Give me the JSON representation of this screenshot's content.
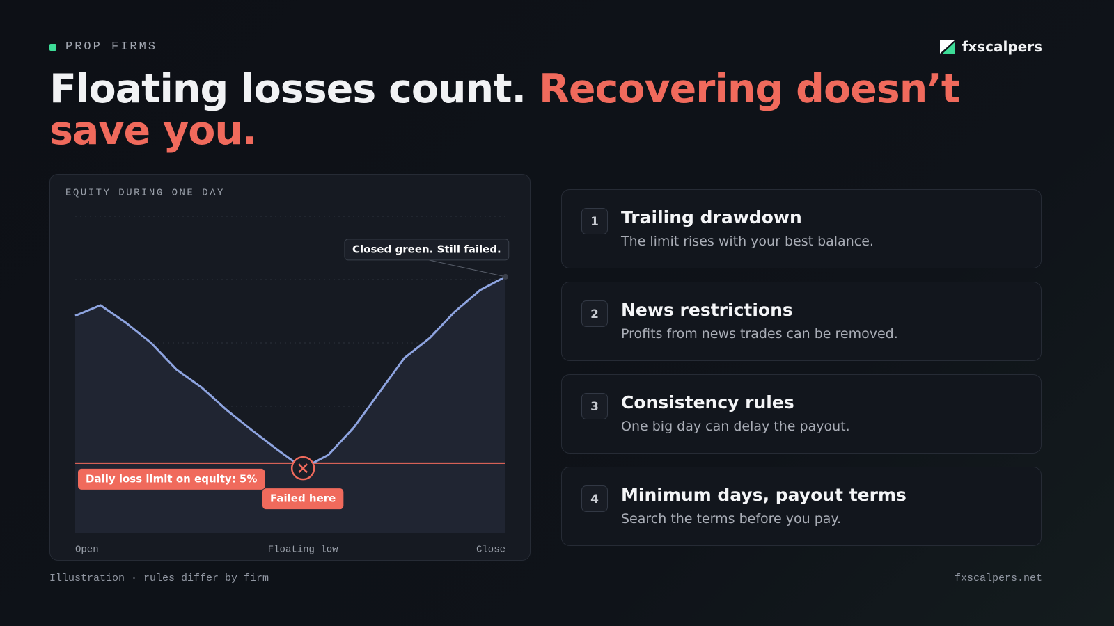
{
  "header": {
    "tag": "PROP FIRMS",
    "brand": "fxscalpers"
  },
  "headline": {
    "lead": "Floating losses count.",
    "accent": "Recovering doesn’t save you."
  },
  "chart_data": {
    "type": "line",
    "title": "EQUITY DURING ONE DAY",
    "categories": [
      "Open",
      null,
      null,
      null,
      null,
      null,
      null,
      null,
      null,
      "Floating low",
      null,
      null,
      null,
      null,
      null,
      null,
      null,
      "Close"
    ],
    "values": [
      68.6,
      71.9,
      66.4,
      60,
      51.6,
      45.9,
      38.7,
      32.3,
      26.2,
      20.4,
      24.6,
      33.2,
      44.2,
      55.2,
      61.5,
      69.9,
      76.7,
      80.9
    ],
    "color": "#8ea4e0",
    "ylim": [
      0,
      100
    ],
    "grid_lines": [
      0,
      20,
      40,
      60,
      80,
      100
    ],
    "limit": {
      "value": 22,
      "label": "Daily loss limit on equity: 5%",
      "color": "#f06a5c"
    },
    "annotations": {
      "failed": "Failed here",
      "closed": "Closed green. Still failed."
    }
  },
  "cards": [
    {
      "number": "1",
      "title": "Trailing drawdown",
      "text": "The limit rises with your best balance."
    },
    {
      "number": "2",
      "title": "News restrictions",
      "text": "Profits from news trades can be removed."
    },
    {
      "number": "3",
      "title": "Consistency rules",
      "text": "One big day can delay the payout."
    },
    {
      "number": "4",
      "title": "Minimum days, payout terms",
      "text": "Search the terms before you pay."
    }
  ],
  "footer": {
    "note": "Illustration · rules differ by firm",
    "site": "fxscalpers.net"
  }
}
